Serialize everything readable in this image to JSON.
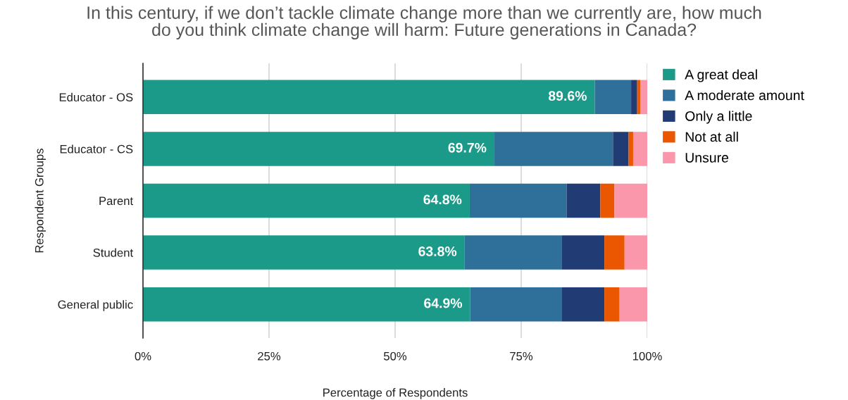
{
  "chart_data": {
    "type": "bar",
    "orientation": "horizontal",
    "stacked": true,
    "title": "In this century, if we don’t tackle climate change more than we currently are, how much\ndo you think climate change will harm: Future generations in Canada?",
    "xlabel": "Percentage of Respondents",
    "ylabel": "Respondent Groups",
    "categories": [
      "Educator - OS",
      "Educator - CS",
      "Parent",
      "Student",
      "General public"
    ],
    "series": [
      {
        "name": "A great deal",
        "color": "#1b9a8a",
        "values": [
          89.6,
          69.7,
          64.8,
          63.8,
          64.9
        ],
        "value_labels": [
          "89.6%",
          "69.7%",
          "64.8%",
          "63.8%",
          "64.9%"
        ]
      },
      {
        "name": "A moderate amount",
        "color": "#2e7099",
        "values": [
          7.2,
          23.5,
          19.2,
          19.2,
          18.2
        ]
      },
      {
        "name": "Only a little",
        "color": "#213b74",
        "values": [
          1.2,
          3.1,
          6.7,
          8.5,
          8.4
        ]
      },
      {
        "name": "Not at all",
        "color": "#eb5600",
        "values": [
          0.6,
          0.9,
          2.8,
          4.0,
          3.0
        ]
      },
      {
        "name": "Unsure",
        "color": "#fb97aa",
        "values": [
          1.4,
          2.8,
          6.5,
          4.5,
          5.5
        ]
      }
    ],
    "xlim": [
      0,
      100
    ],
    "xticks": [
      {
        "value": 0,
        "label": "0%"
      },
      {
        "value": 25,
        "label": "25%"
      },
      {
        "value": 50,
        "label": "50%"
      },
      {
        "value": 75,
        "label": "75%"
      },
      {
        "value": 100,
        "label": "100%"
      }
    ],
    "grid": "x",
    "legend": "right"
  }
}
